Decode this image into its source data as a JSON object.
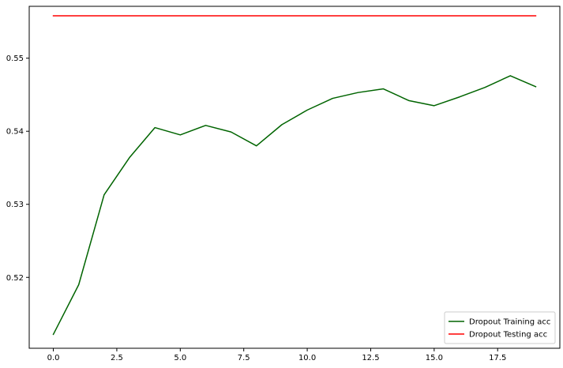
{
  "chart_data": {
    "type": "line",
    "title": "",
    "xlabel": "",
    "ylabel": "",
    "xlim": [
      -0.95,
      19.95
    ],
    "ylim": [
      0.5103,
      0.5571
    ],
    "xticks": [
      0.0,
      2.5,
      5.0,
      7.5,
      10.0,
      12.5,
      15.0,
      17.5
    ],
    "xtick_labels": [
      "0.0",
      "2.5",
      "5.0",
      "7.5",
      "10.0",
      "12.5",
      "15.0",
      "17.5"
    ],
    "yticks": [
      0.52,
      0.53,
      0.54,
      0.55
    ],
    "ytick_labels": [
      "0.52",
      "0.53",
      "0.54",
      "0.55"
    ],
    "grid": false,
    "legend_position": "lower-right",
    "x": [
      0,
      1,
      2,
      3,
      4,
      5,
      6,
      7,
      8,
      9,
      10,
      11,
      12,
      13,
      14,
      15,
      16,
      17,
      18,
      19
    ],
    "series": [
      {
        "name": "Dropout Training acc",
        "color": "#006400",
        "values": [
          0.5122,
          0.519,
          0.5313,
          0.5364,
          0.5405,
          0.5395,
          0.5408,
          0.5399,
          0.538,
          0.5409,
          0.5429,
          0.5445,
          0.5453,
          0.5458,
          0.5442,
          0.5435,
          0.5447,
          0.546,
          0.5476,
          0.5461
        ]
      },
      {
        "name": "Dropout Testing acc",
        "color": "#ff0000",
        "values": [
          0.5558,
          0.5558,
          0.5558,
          0.5558,
          0.5558,
          0.5558,
          0.5558,
          0.5558,
          0.5558,
          0.5558,
          0.5558,
          0.5558,
          0.5558,
          0.5558,
          0.5558,
          0.5558,
          0.5558,
          0.5558,
          0.5558,
          0.5558
        ]
      }
    ]
  }
}
